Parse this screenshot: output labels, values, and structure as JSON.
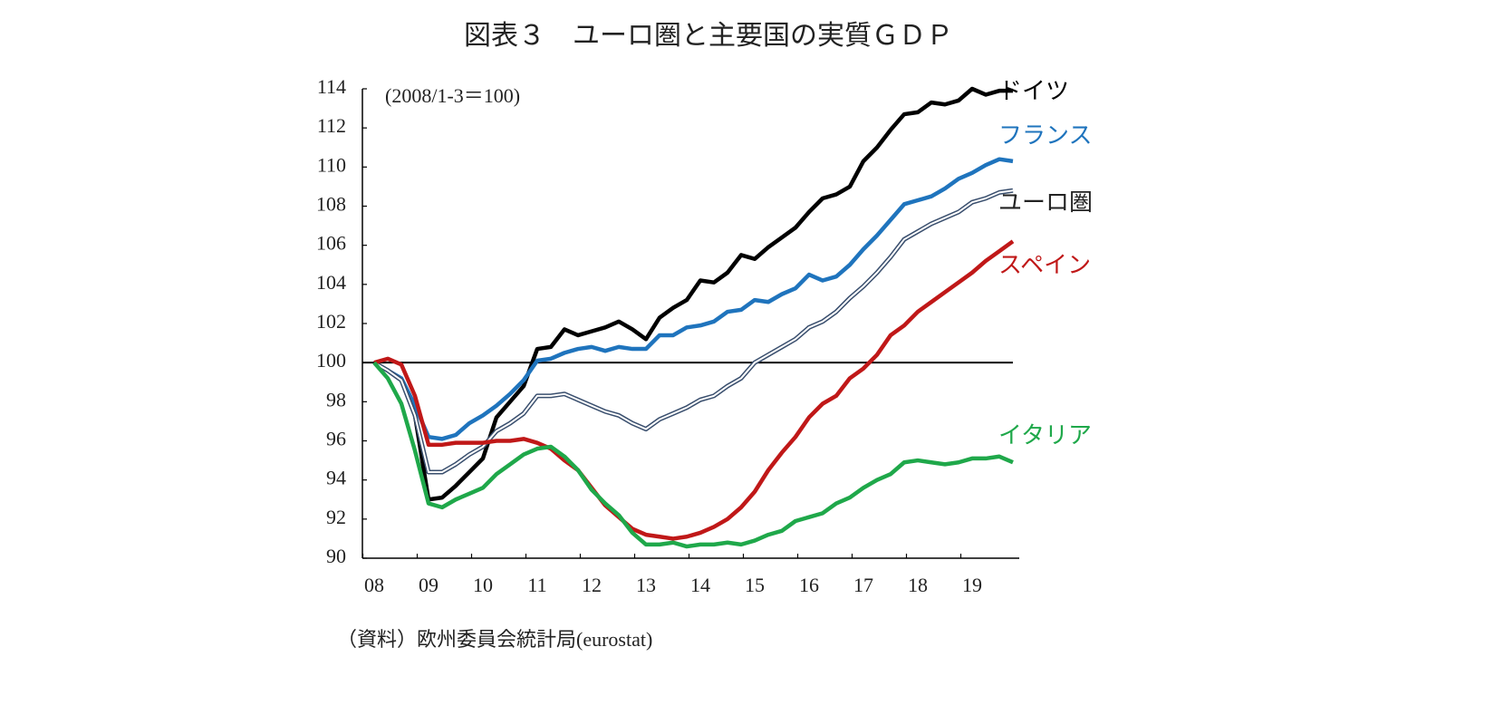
{
  "chart_data": {
    "type": "line",
    "title": "図表３　ユーロ圏と主要国の実質ＧＤＰ",
    "annotation": "(2008/1-3＝100)",
    "source": "（資料）欧州委員会統計局(eurostat)",
    "categories": [
      "08",
      null,
      null,
      null,
      "09",
      null,
      null,
      null,
      "10",
      null,
      null,
      null,
      "11",
      null,
      null,
      null,
      "12",
      null,
      null,
      null,
      "13",
      null,
      null,
      null,
      "14",
      null,
      null,
      null,
      "15",
      null,
      null,
      null,
      "16",
      null,
      null,
      null,
      "17",
      null,
      null,
      null,
      "18",
      null,
      null,
      null,
      "19",
      null,
      null,
      null
    ],
    "ylim": [
      90,
      114
    ],
    "yticks": [
      90,
      92,
      94,
      96,
      98,
      100,
      102,
      104,
      106,
      108,
      110,
      112,
      114
    ],
    "reference_line": 100,
    "series": [
      {
        "name": "ドイツ",
        "color": "#000000",
        "values": [
          100,
          99.6,
          99.1,
          97.3,
          93.0,
          93.1,
          93.7,
          94.4,
          95.1,
          97.2,
          98.0,
          98.8,
          100.7,
          100.8,
          101.7,
          101.4,
          101.6,
          101.8,
          102.1,
          101.7,
          101.2,
          102.3,
          102.8,
          103.2,
          104.2,
          104.1,
          104.6,
          105.5,
          105.3,
          105.9,
          106.4,
          106.9,
          107.7,
          108.4,
          108.6,
          109.0,
          110.3,
          111.0,
          111.9,
          112.7,
          112.8,
          113.3,
          113.2,
          113.4,
          114.0,
          113.7,
          113.9,
          113.9
        ]
      },
      {
        "name": "フランス",
        "color": "#1f74bd",
        "values": [
          100,
          99.6,
          99.2,
          97.8,
          96.2,
          96.1,
          96.3,
          96.9,
          97.3,
          97.8,
          98.4,
          99.1,
          100.1,
          100.2,
          100.5,
          100.7,
          100.8,
          100.6,
          100.8,
          100.7,
          100.7,
          101.4,
          101.4,
          101.8,
          101.9,
          102.1,
          102.6,
          102.7,
          103.2,
          103.1,
          103.5,
          103.8,
          104.5,
          104.2,
          104.4,
          105.0,
          105.8,
          106.5,
          107.3,
          108.1,
          108.3,
          108.5,
          108.9,
          109.4,
          109.7,
          110.1,
          110.4,
          110.3
        ]
      },
      {
        "name": "ユーロ圏",
        "color": "#3a4f6e",
        "values": [
          100,
          99.6,
          99.1,
          97.3,
          94.4,
          94.4,
          94.8,
          95.3,
          95.7,
          96.5,
          96.9,
          97.4,
          98.3,
          98.3,
          98.4,
          98.1,
          97.8,
          97.5,
          97.3,
          96.9,
          96.6,
          97.1,
          97.4,
          97.7,
          98.1,
          98.3,
          98.8,
          99.2,
          100.0,
          100.4,
          100.8,
          101.2,
          101.8,
          102.1,
          102.6,
          103.3,
          103.9,
          104.6,
          105.4,
          106.3,
          106.7,
          107.1,
          107.4,
          107.7,
          108.2,
          108.4,
          108.7,
          108.8
        ]
      },
      {
        "name": "スペイン",
        "color": "#c01818",
        "values": [
          100,
          100.2,
          99.9,
          98.3,
          95.8,
          95.8,
          95.9,
          95.9,
          95.9,
          96.0,
          96.0,
          96.1,
          95.9,
          95.6,
          95.0,
          94.5,
          93.6,
          92.7,
          92.1,
          91.5,
          91.2,
          91.1,
          91.0,
          91.1,
          91.3,
          91.6,
          92.0,
          92.6,
          93.4,
          94.5,
          95.4,
          96.2,
          97.2,
          97.9,
          98.3,
          99.2,
          99.7,
          100.4,
          101.4,
          101.9,
          102.6,
          103.1,
          103.6,
          104.1,
          104.6,
          105.2,
          105.7,
          106.2
        ]
      },
      {
        "name": "イタリア",
        "color": "#1fa84a",
        "values": [
          100,
          99.2,
          97.9,
          95.5,
          92.8,
          92.6,
          93.0,
          93.3,
          93.6,
          94.3,
          94.8,
          95.3,
          95.6,
          95.7,
          95.2,
          94.5,
          93.5,
          92.8,
          92.2,
          91.3,
          90.7,
          90.7,
          90.8,
          90.6,
          90.7,
          90.7,
          90.8,
          90.7,
          90.9,
          91.2,
          91.4,
          91.9,
          92.1,
          92.3,
          92.8,
          93.1,
          93.6,
          94.0,
          94.3,
          94.9,
          95.0,
          94.9,
          94.8,
          94.9,
          95.1,
          95.1,
          95.2,
          94.9
        ]
      }
    ]
  }
}
